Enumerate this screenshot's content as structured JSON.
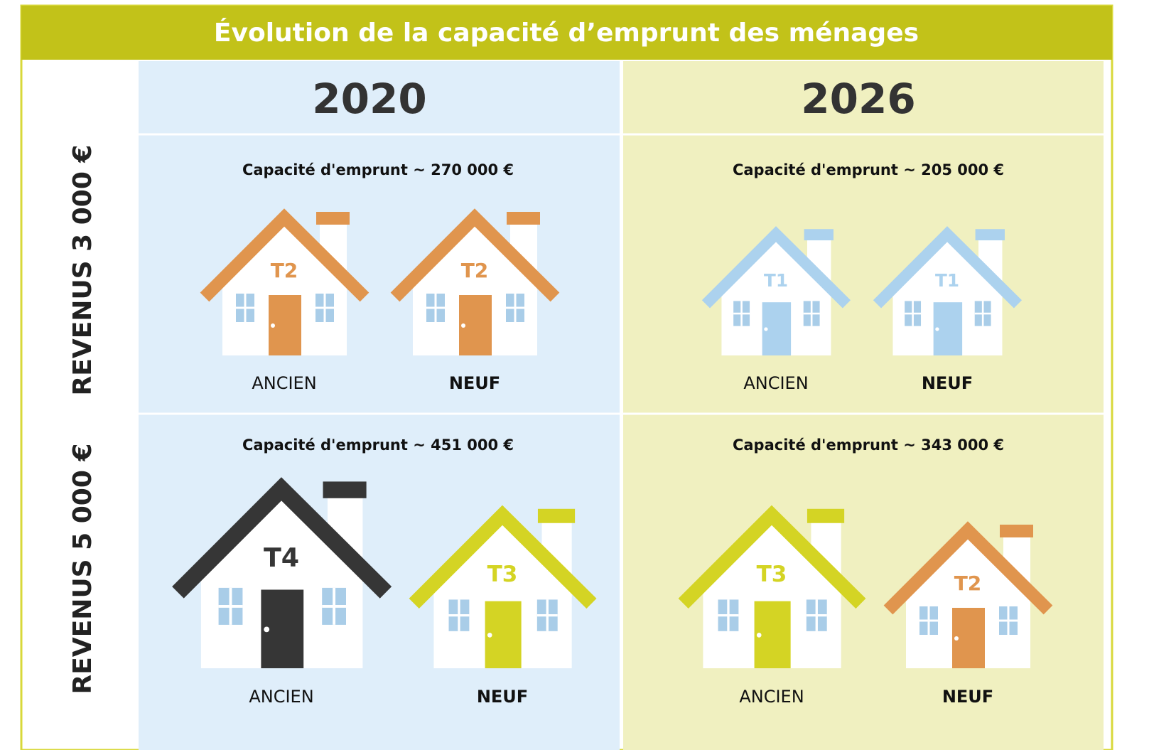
{
  "title": "Évolution de la capacité d’emprunt des ménages",
  "columns": [
    "2020",
    "2026"
  ],
  "rows": [
    {
      "label": "REVENUS 3 000 €",
      "cells": [
        {
          "capacity": "Capacité d'emprunt ~ 270 000 €",
          "houses": [
            {
              "label": "T2",
              "kind": "ANCIEN",
              "color": "#e0954e"
            },
            {
              "label": "T2",
              "kind": "NEUF",
              "color": "#e0954e"
            }
          ]
        },
        {
          "capacity": "Capacité d'emprunt ~ 205 000 €",
          "houses": [
            {
              "label": "T1",
              "kind": "ANCIEN",
              "color": "#acd2ee"
            },
            {
              "label": "T1",
              "kind": "NEUF",
              "color": "#acd2ee"
            }
          ]
        }
      ]
    },
    {
      "label": "REVENUS 5 000 €",
      "cells": [
        {
          "capacity": "Capacité d'emprunt ~ 451 000 €",
          "houses": [
            {
              "label": "T4",
              "kind": "ANCIEN",
              "color": "#363636"
            },
            {
              "label": "T3",
              "kind": "NEUF",
              "color": "#d4d424"
            }
          ]
        },
        {
          "capacity": "Capacité d'emprunt ~ 343 000 €",
          "houses": [
            {
              "label": "T3",
              "kind": "ANCIEN",
              "color": "#d4d424"
            },
            {
              "label": "T2",
              "kind": "NEUF",
              "color": "#e0954e"
            }
          ]
        }
      ]
    }
  ]
}
